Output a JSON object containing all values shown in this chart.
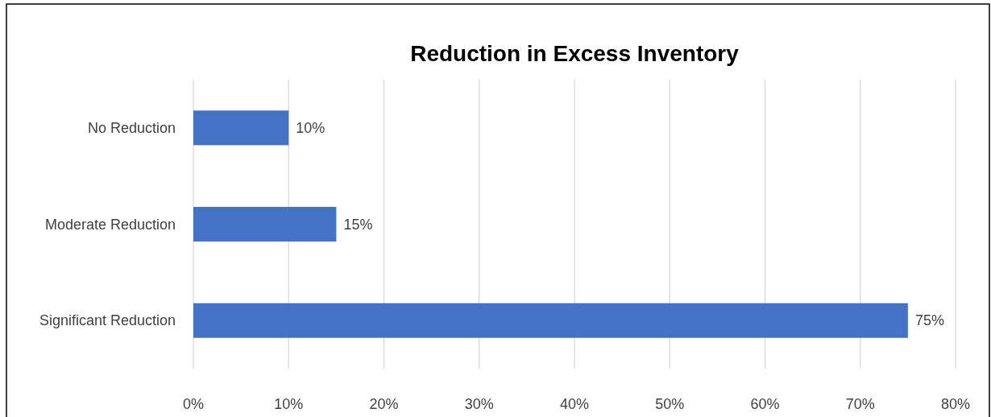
{
  "chart_data": {
    "type": "bar",
    "title": "Reduction in Excess Inventory",
    "orientation": "horizontal",
    "categories": [
      "No Reduction",
      "Moderate Reduction",
      "Significant Reduction"
    ],
    "values": [
      10,
      15,
      75
    ],
    "color": "#4472c4",
    "value_labels": [
      "10%",
      "15%",
      "75%"
    ],
    "xlim": [
      0,
      80
    ],
    "xticks": [
      {
        "value": 0,
        "label": "0%"
      },
      {
        "value": 10,
        "label": "10%"
      },
      {
        "value": 20,
        "label": "20%"
      },
      {
        "value": 30,
        "label": "30%"
      },
      {
        "value": 40,
        "label": "40%"
      },
      {
        "value": 50,
        "label": "50%"
      },
      {
        "value": 60,
        "label": "60%"
      },
      {
        "value": 70,
        "label": "70%"
      },
      {
        "value": 80,
        "label": "80%"
      }
    ],
    "grid": "x"
  }
}
